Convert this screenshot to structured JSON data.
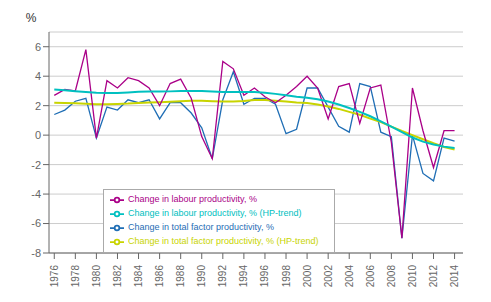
{
  "chart_data": {
    "type": "line",
    "ylabel": "%",
    "x": [
      1976,
      1977,
      1978,
      1979,
      1980,
      1981,
      1982,
      1983,
      1984,
      1985,
      1986,
      1987,
      1988,
      1989,
      1990,
      1991,
      1992,
      1993,
      1994,
      1995,
      1996,
      1997,
      1998,
      1999,
      2000,
      2001,
      2002,
      2003,
      2004,
      2005,
      2006,
      2007,
      2008,
      2009,
      2010,
      2011,
      2012,
      2013,
      2014
    ],
    "series": [
      {
        "name": "Change in total factor productivity,  %",
        "color": "#1f6eb5",
        "values": [
          1.4,
          1.7,
          2.3,
          2.5,
          -0.2,
          1.9,
          1.7,
          2.4,
          2.2,
          2.4,
          1.1,
          2.2,
          2.2,
          1.5,
          0.5,
          -1.6,
          2.4,
          4.3,
          2.1,
          2.5,
          2.5,
          2.1,
          0.1,
          0.4,
          3.2,
          3.2,
          1.9,
          0.6,
          0.2,
          3.5,
          3.3,
          0.2,
          -0.1,
          -7.0,
          0.0,
          -2.6,
          -3.1,
          -0.2,
          -0.4
        ]
      },
      {
        "name": "Change in total factor productivity,  % (HP-trend)",
        "color": "#c8d400",
        "values": [
          2.2,
          2.18,
          2.16,
          2.13,
          2.1,
          2.1,
          2.12,
          2.14,
          2.18,
          2.22,
          2.24,
          2.27,
          2.3,
          2.33,
          2.33,
          2.3,
          2.28,
          2.28,
          2.32,
          2.38,
          2.38,
          2.34,
          2.28,
          2.22,
          2.18,
          2.08,
          1.94,
          1.78,
          1.58,
          1.38,
          1.12,
          0.88,
          0.58,
          0.28,
          0.0,
          -0.28,
          -0.55,
          -0.8,
          -0.98
        ]
      },
      {
        "name": "Change in labour productivity,  %",
        "color": "#aa0088",
        "values": [
          2.7,
          3.1,
          3.0,
          5.8,
          -0.2,
          3.7,
          3.2,
          3.9,
          3.7,
          3.2,
          2.0,
          3.5,
          3.8,
          2.5,
          -0.1,
          -1.6,
          5.0,
          4.5,
          2.7,
          3.2,
          2.6,
          2.2,
          2.7,
          3.3,
          4.0,
          3.2,
          1.1,
          3.3,
          3.5,
          0.8,
          3.2,
          3.4,
          -0.5,
          -7.0,
          3.2,
          0.3,
          -2.2,
          0.3,
          0.3
        ]
      },
      {
        "name": "Change in labour productivity,  % (HP-trend)",
        "color": "#00c0c0",
        "values": [
          3.1,
          3.05,
          2.98,
          2.92,
          2.87,
          2.86,
          2.86,
          2.9,
          2.94,
          2.96,
          2.96,
          2.97,
          2.99,
          3.0,
          2.99,
          2.96,
          2.93,
          2.92,
          2.92,
          2.93,
          2.88,
          2.8,
          2.7,
          2.6,
          2.54,
          2.44,
          2.28,
          2.08,
          1.84,
          1.58,
          1.28,
          0.94,
          0.58,
          0.2,
          -0.16,
          -0.44,
          -0.63,
          -0.78,
          -0.88
        ]
      }
    ],
    "xlim": [
      1975.5,
      2014.8
    ],
    "xticks": [
      1976,
      1978,
      1980,
      1982,
      1984,
      1986,
      1988,
      1990,
      1992,
      1994,
      1996,
      1998,
      2000,
      2002,
      2004,
      2006,
      2008,
      2010,
      2012,
      2014
    ],
    "ylim": [
      -8,
      7
    ],
    "yticks": [
      -8,
      -6,
      -4,
      -2,
      0,
      2,
      4,
      6
    ],
    "grid": true,
    "legend": "lower left"
  }
}
